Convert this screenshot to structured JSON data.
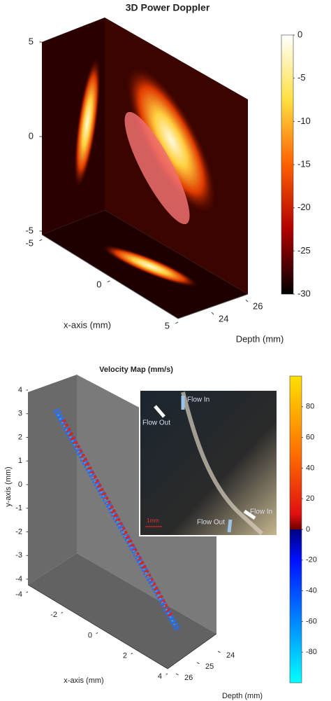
{
  "chart_data": [
    {
      "type": "volume",
      "title": "3D Power Doppler",
      "zlim": [
        -5,
        5
      ],
      "zticks": [
        -5,
        0,
        5
      ],
      "xlabel": "x-axis (mm)",
      "xlim": [
        -5,
        5
      ],
      "xticks": [
        -5,
        0,
        5
      ],
      "depth_label": "Depth (mm)",
      "depth_lim": [
        24,
        26
      ],
      "depth_ticks": [
        24,
        26
      ],
      "colorbar_lim": [
        -30,
        0
      ],
      "colorbar_ticks": [
        0,
        -5,
        -10,
        -15,
        -20,
        -25,
        -30
      ]
    },
    {
      "type": "scatter3d",
      "title": "Velocity Map (mm/s)",
      "ylabel": "y-axis (mm)",
      "ylim": [
        -4,
        4
      ],
      "yticks": [
        -4,
        -3,
        -2,
        -1,
        0,
        1,
        2,
        3,
        4
      ],
      "xlabel": "x-axis (mm)",
      "xlim": [
        -4,
        4
      ],
      "xticks": [
        -4,
        -2,
        0,
        2,
        4
      ],
      "depth_label": "Depth (mm)",
      "depth_lim": [
        24,
        26
      ],
      "depth_ticks": [
        24,
        25,
        26
      ],
      "colorbar_lim": [
        -100,
        100
      ],
      "colorbar_ticks": [
        80,
        60,
        40,
        20,
        0,
        -20,
        -40,
        -60,
        -80
      ],
      "inset_labels": [
        "Flow In",
        "Flow Out",
        "Flow In",
        "Flow Out",
        "1mm"
      ]
    }
  ]
}
